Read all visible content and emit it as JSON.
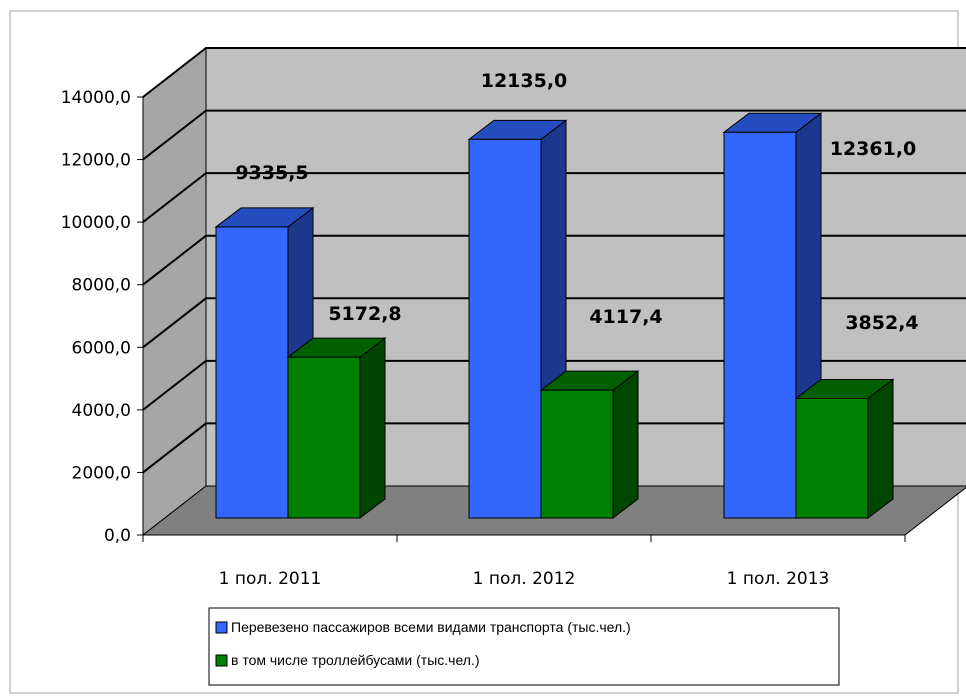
{
  "chart_data": {
    "type": "bar",
    "categories": [
      "1 пол. 2011",
      "1 пол. 2012",
      "1 пол. 2013"
    ],
    "series": [
      {
        "name": "Перевезено пассажиров всеми видами транспорта (тыс.чел.)",
        "values": [
          9335.5,
          12135.0,
          12361.0
        ],
        "value_labels": [
          "9335,5",
          "12135,0",
          "12361,0"
        ],
        "color": "#3366ff"
      },
      {
        "name": "в том числе троллейбусами (тыс.чел.)",
        "values": [
          5172.8,
          4117.4,
          3852.4
        ],
        "value_labels": [
          "5172,8",
          "4117,4",
          "3852,4"
        ],
        "color": "#008000"
      }
    ],
    "y_ticks": [
      "0,0",
      "2000,0",
      "4000,0",
      "6000,0",
      "8000,0",
      "10000,0",
      "12000,0",
      "14000,0"
    ],
    "ylim": [
      0,
      14000
    ],
    "grid": true,
    "style": "3d-column",
    "wall_color": "#c0c0c0",
    "floor_color": "#808080",
    "legend_position": "bottom"
  }
}
